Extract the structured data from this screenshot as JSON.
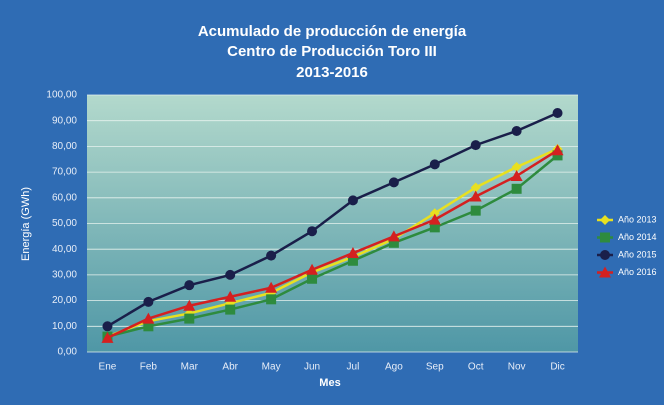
{
  "chart_data": {
    "type": "line",
    "title": [
      "Acumulado de producción de energía",
      "Centro de Producción Toro III",
      "2013-2016"
    ],
    "xlabel": "Mes",
    "ylabel": "Energía (GWh)",
    "categories": [
      "Ene",
      "Feb",
      "Mar",
      "Abr",
      "May",
      "Jun",
      "Jul",
      "Ago",
      "Sep",
      "Oct",
      "Nov",
      "Dic"
    ],
    "series": [
      {
        "name": "Año 2013",
        "color": "#e8e020",
        "marker": "diamond",
        "values": [
          6,
          12,
          15,
          19,
          23,
          31,
          37,
          44,
          54,
          64,
          72,
          79
        ]
      },
      {
        "name": "Año 2014",
        "color": "#2e8b3e",
        "marker": "square",
        "values": [
          6,
          10,
          13,
          16.5,
          20.5,
          28.5,
          35.5,
          42.5,
          48.5,
          55,
          63.5,
          76.5
        ]
      },
      {
        "name": "Año 2015",
        "color": "#1a1f4a",
        "marker": "circle",
        "values": [
          10,
          19.5,
          26,
          30,
          37.5,
          47,
          59,
          66,
          73,
          80.5,
          86,
          93
        ]
      },
      {
        "name": "Año 2016",
        "color": "#d42020",
        "marker": "triangle",
        "values": [
          5.5,
          13,
          18,
          21.5,
          25,
          32,
          38.5,
          45,
          51.5,
          60.5,
          68.5,
          78.5
        ]
      }
    ],
    "ylim": [
      0,
      100
    ],
    "yticks": [
      {
        "value": 0,
        "label": "0,00"
      },
      {
        "value": 10,
        "label": "10,00"
      },
      {
        "value": 20,
        "label": "20,00"
      },
      {
        "value": 30,
        "label": "30,00"
      },
      {
        "value": 40,
        "label": "40,00"
      },
      {
        "value": 50,
        "label": "50,00"
      },
      {
        "value": 60,
        "label": "60,00"
      },
      {
        "value": 70,
        "label": "70,00"
      },
      {
        "value": 80,
        "label": "80,00"
      },
      {
        "value": 90,
        "label": "90,00"
      },
      {
        "value": 100,
        "label": "100,00"
      }
    ],
    "grid": true,
    "legend": "right"
  }
}
